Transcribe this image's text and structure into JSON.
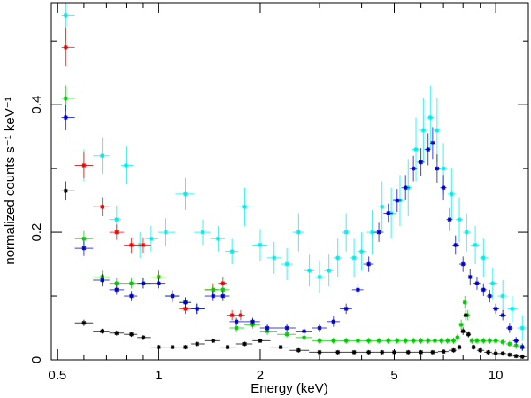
{
  "chart_data": {
    "type": "scatter",
    "xlabel": "Energy (keV)",
    "ylabel": "normalized counts s⁻¹ keV⁻¹",
    "xscale": "log",
    "xlim": [
      0.48,
      12.5
    ],
    "ylim": [
      0,
      0.56
    ],
    "xticks_major": [
      {
        "v": 0.5,
        "label": "0.5"
      },
      {
        "v": 1,
        "label": "1"
      },
      {
        "v": 2,
        "label": "2"
      },
      {
        "v": 5,
        "label": "5"
      },
      {
        "v": 10,
        "label": "10"
      }
    ],
    "xticks_minor": [
      0.6,
      0.7,
      0.8,
      0.9,
      3,
      4,
      6,
      7,
      8,
      9
    ],
    "yticks_major": [
      {
        "v": 0,
        "label": "0"
      },
      {
        "v": 0.2,
        "label": "0.2"
      },
      {
        "v": 0.4,
        "label": "0.4"
      }
    ],
    "yticks_minor": [
      0.1,
      0.3,
      0.5
    ],
    "series": [
      {
        "name": "cyan",
        "color": "#00eeee",
        "points": [
          [
            0.53,
            0.54,
            0.04
          ],
          [
            0.6,
            0.305,
            0.025
          ],
          [
            0.68,
            0.32,
            0.028
          ],
          [
            0.75,
            0.22,
            0.022
          ],
          [
            0.8,
            0.305,
            0.03
          ],
          [
            0.88,
            0.18,
            0.02
          ],
          [
            0.95,
            0.19,
            0.02
          ],
          [
            1.05,
            0.2,
            0.022
          ],
          [
            1.2,
            0.26,
            0.025
          ],
          [
            1.35,
            0.2,
            0.02
          ],
          [
            1.5,
            0.19,
            0.02
          ],
          [
            1.65,
            0.17,
            0.02
          ],
          [
            1.8,
            0.24,
            0.03
          ],
          [
            2.0,
            0.18,
            0.025
          ],
          [
            2.2,
            0.16,
            0.025
          ],
          [
            2.4,
            0.15,
            0.025
          ],
          [
            2.6,
            0.2,
            0.03
          ],
          [
            2.8,
            0.14,
            0.025
          ],
          [
            3.0,
            0.13,
            0.025
          ],
          [
            3.2,
            0.14,
            0.025
          ],
          [
            3.4,
            0.16,
            0.03
          ],
          [
            3.6,
            0.2,
            0.03
          ],
          [
            3.8,
            0.16,
            0.03
          ],
          [
            4.0,
            0.17,
            0.03
          ],
          [
            4.3,
            0.2,
            0.035
          ],
          [
            4.6,
            0.24,
            0.04
          ],
          [
            4.9,
            0.23,
            0.04
          ],
          [
            5.2,
            0.25,
            0.04
          ],
          [
            5.5,
            0.27,
            0.045
          ],
          [
            5.8,
            0.33,
            0.05
          ],
          [
            6.1,
            0.36,
            0.05
          ],
          [
            6.4,
            0.38,
            0.05
          ],
          [
            6.7,
            0.36,
            0.05
          ],
          [
            7.0,
            0.3,
            0.04
          ],
          [
            7.4,
            0.26,
            0.04
          ],
          [
            7.8,
            0.22,
            0.035
          ],
          [
            8.2,
            0.2,
            0.03
          ],
          [
            8.7,
            0.18,
            0.03
          ],
          [
            9.2,
            0.16,
            0.03
          ],
          [
            9.8,
            0.12,
            0.025
          ],
          [
            10.5,
            0.1,
            0.025
          ],
          [
            11.2,
            0.08,
            0.02
          ],
          [
            12.0,
            0.05,
            0.02
          ]
        ]
      },
      {
        "name": "red",
        "color": "#ff0000",
        "points": [
          [
            0.53,
            0.49,
            0.03
          ],
          [
            0.6,
            0.305,
            0.02
          ],
          [
            0.68,
            0.24,
            0.015
          ],
          [
            0.75,
            0.2,
            0.012
          ],
          [
            0.83,
            0.18,
            0.012
          ],
          [
            0.9,
            0.18,
            0.012
          ],
          [
            1.0,
            0.13,
            0.01
          ],
          [
            1.1,
            0.1,
            0.01
          ],
          [
            1.2,
            0.08,
            0.008
          ],
          [
            1.3,
            0.08,
            0.008
          ],
          [
            1.45,
            0.11,
            0.01
          ],
          [
            1.55,
            0.12,
            0.01
          ],
          [
            1.65,
            0.07,
            0.008
          ],
          [
            1.75,
            0.07,
            0.008
          ]
        ]
      },
      {
        "name": "green",
        "color": "#00cc00",
        "points": [
          [
            0.53,
            0.41,
            0.02
          ],
          [
            0.6,
            0.19,
            0.012
          ],
          [
            0.68,
            0.13,
            0.01
          ],
          [
            0.75,
            0.12,
            0.008
          ],
          [
            0.83,
            0.12,
            0.008
          ],
          [
            0.9,
            0.12,
            0.008
          ],
          [
            1.0,
            0.13,
            0.008
          ],
          [
            1.1,
            0.1,
            0.008
          ],
          [
            1.2,
            0.09,
            0.008
          ],
          [
            1.3,
            0.08,
            0.008
          ],
          [
            1.45,
            0.11,
            0.008
          ],
          [
            1.55,
            0.11,
            0.008
          ],
          [
            1.7,
            0.05,
            0.006
          ],
          [
            1.9,
            0.055,
            0.006
          ],
          [
            2.1,
            0.045,
            0.006
          ],
          [
            2.4,
            0.04,
            0.005
          ],
          [
            2.7,
            0.035,
            0.005
          ],
          [
            3.0,
            0.03,
            0.005
          ],
          [
            3.3,
            0.03,
            0.005
          ],
          [
            3.6,
            0.03,
            0.005
          ],
          [
            3.9,
            0.03,
            0.005
          ],
          [
            4.2,
            0.03,
            0.005
          ],
          [
            4.5,
            0.03,
            0.005
          ],
          [
            4.8,
            0.03,
            0.005
          ],
          [
            5.1,
            0.03,
            0.005
          ],
          [
            5.4,
            0.03,
            0.005
          ],
          [
            5.7,
            0.03,
            0.005
          ],
          [
            6.0,
            0.03,
            0.005
          ],
          [
            6.3,
            0.03,
            0.005
          ],
          [
            6.6,
            0.03,
            0.005
          ],
          [
            6.9,
            0.03,
            0.005
          ],
          [
            7.2,
            0.03,
            0.005
          ],
          [
            7.5,
            0.03,
            0.005
          ],
          [
            7.7,
            0.035,
            0.005
          ],
          [
            7.9,
            0.055,
            0.008
          ],
          [
            8.1,
            0.09,
            0.01
          ],
          [
            8.25,
            0.07,
            0.008
          ],
          [
            8.5,
            0.03,
            0.005
          ],
          [
            8.8,
            0.03,
            0.005
          ],
          [
            9.2,
            0.03,
            0.005
          ],
          [
            9.6,
            0.03,
            0.005
          ],
          [
            10.0,
            0.03,
            0.005
          ],
          [
            10.5,
            0.028,
            0.005
          ],
          [
            11.0,
            0.025,
            0.005
          ],
          [
            11.5,
            0.022,
            0.005
          ],
          [
            12.0,
            0.02,
            0.005
          ]
        ]
      },
      {
        "name": "blue",
        "color": "#0000cc",
        "points": [
          [
            0.53,
            0.38,
            0.02
          ],
          [
            0.6,
            0.175,
            0.012
          ],
          [
            0.68,
            0.125,
            0.01
          ],
          [
            0.75,
            0.11,
            0.008
          ],
          [
            0.83,
            0.1,
            0.008
          ],
          [
            0.9,
            0.12,
            0.008
          ],
          [
            1.0,
            0.12,
            0.008
          ],
          [
            1.1,
            0.1,
            0.008
          ],
          [
            1.2,
            0.09,
            0.008
          ],
          [
            1.3,
            0.08,
            0.008
          ],
          [
            1.45,
            0.1,
            0.008
          ],
          [
            1.55,
            0.1,
            0.008
          ],
          [
            1.7,
            0.06,
            0.006
          ],
          [
            1.9,
            0.06,
            0.006
          ],
          [
            2.1,
            0.05,
            0.006
          ],
          [
            2.4,
            0.05,
            0.006
          ],
          [
            2.7,
            0.045,
            0.006
          ],
          [
            3.0,
            0.05,
            0.006
          ],
          [
            3.3,
            0.06,
            0.008
          ],
          [
            3.6,
            0.08,
            0.008
          ],
          [
            3.9,
            0.11,
            0.01
          ],
          [
            4.2,
            0.15,
            0.012
          ],
          [
            4.5,
            0.2,
            0.015
          ],
          [
            4.8,
            0.23,
            0.015
          ],
          [
            5.1,
            0.25,
            0.018
          ],
          [
            5.4,
            0.27,
            0.02
          ],
          [
            5.7,
            0.3,
            0.02
          ],
          [
            6.0,
            0.31,
            0.022
          ],
          [
            6.3,
            0.33,
            0.025
          ],
          [
            6.5,
            0.34,
            0.025
          ],
          [
            6.7,
            0.3,
            0.022
          ],
          [
            7.0,
            0.27,
            0.02
          ],
          [
            7.3,
            0.22,
            0.018
          ],
          [
            7.6,
            0.18,
            0.015
          ],
          [
            8.0,
            0.15,
            0.012
          ],
          [
            8.4,
            0.13,
            0.012
          ],
          [
            8.8,
            0.12,
            0.01
          ],
          [
            9.2,
            0.11,
            0.01
          ],
          [
            9.6,
            0.1,
            0.01
          ],
          [
            10.0,
            0.08,
            0.008
          ],
          [
            10.5,
            0.07,
            0.008
          ],
          [
            11.0,
            0.05,
            0.008
          ],
          [
            11.5,
            0.03,
            0.006
          ],
          [
            12.0,
            0.02,
            0.006
          ]
        ]
      },
      {
        "name": "black",
        "color": "#000000",
        "points": [
          [
            0.53,
            0.265,
            0.015
          ],
          [
            0.6,
            0.058,
            0.005
          ],
          [
            0.68,
            0.045,
            0.004
          ],
          [
            0.75,
            0.042,
            0.004
          ],
          [
            0.83,
            0.04,
            0.004
          ],
          [
            0.9,
            0.035,
            0.004
          ],
          [
            1.0,
            0.02,
            0.003
          ],
          [
            1.1,
            0.02,
            0.003
          ],
          [
            1.2,
            0.02,
            0.003
          ],
          [
            1.3,
            0.025,
            0.003
          ],
          [
            1.45,
            0.03,
            0.003
          ],
          [
            1.6,
            0.02,
            0.003
          ],
          [
            1.8,
            0.025,
            0.003
          ],
          [
            2.0,
            0.03,
            0.003
          ],
          [
            2.3,
            0.02,
            0.003
          ],
          [
            2.6,
            0.015,
            0.003
          ],
          [
            3.0,
            0.012,
            0.003
          ],
          [
            3.4,
            0.012,
            0.003
          ],
          [
            3.8,
            0.012,
            0.003
          ],
          [
            4.2,
            0.012,
            0.003
          ],
          [
            4.6,
            0.012,
            0.003
          ],
          [
            5.0,
            0.012,
            0.003
          ],
          [
            5.5,
            0.012,
            0.003
          ],
          [
            6.0,
            0.012,
            0.003
          ],
          [
            6.5,
            0.012,
            0.003
          ],
          [
            7.0,
            0.013,
            0.003
          ],
          [
            7.5,
            0.015,
            0.003
          ],
          [
            7.8,
            0.02,
            0.004
          ],
          [
            8.0,
            0.045,
            0.006
          ],
          [
            8.15,
            0.07,
            0.008
          ],
          [
            8.3,
            0.04,
            0.005
          ],
          [
            8.6,
            0.02,
            0.004
          ],
          [
            9.0,
            0.015,
            0.003
          ],
          [
            9.5,
            0.012,
            0.003
          ],
          [
            10.0,
            0.01,
            0.003
          ],
          [
            10.5,
            0.01,
            0.003
          ],
          [
            11.0,
            0.008,
            0.003
          ],
          [
            11.5,
            0.006,
            0.003
          ],
          [
            12.0,
            0.005,
            0.003
          ]
        ]
      }
    ]
  }
}
